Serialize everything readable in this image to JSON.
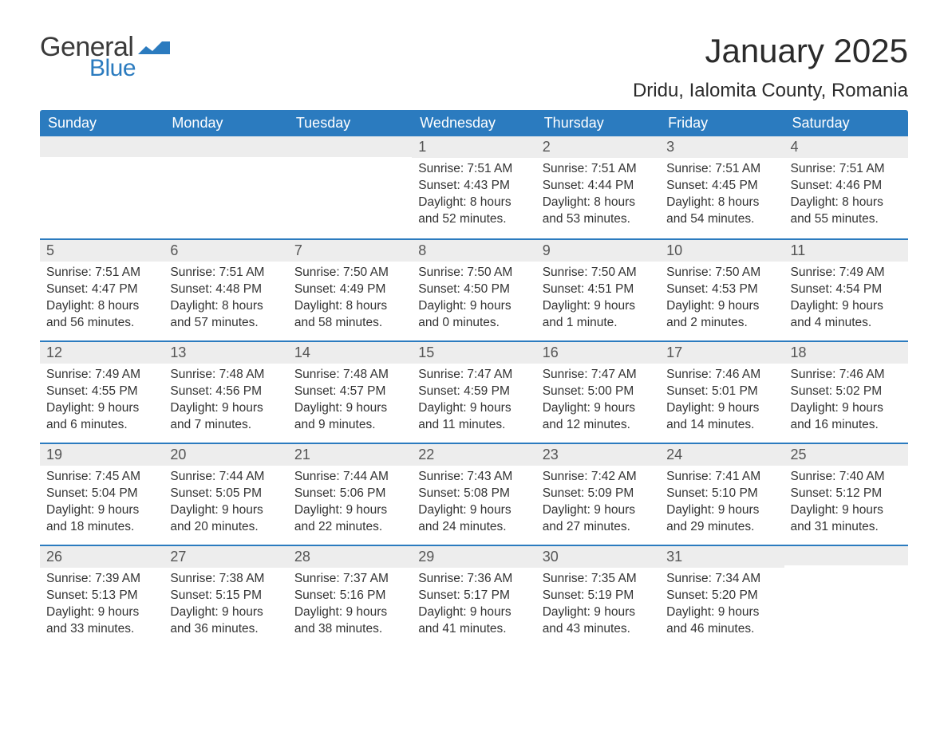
{
  "brand": {
    "word1": "General",
    "word2": "Blue",
    "wave_color": "#2b7bbf",
    "text_color": "#3a3a3a"
  },
  "header": {
    "month_title": "January 2025",
    "location": "Dridu, Ialomita County, Romania"
  },
  "colors": {
    "header_bg": "#2b7bbf",
    "header_fg": "#ffffff",
    "daynum_bg": "#ededed",
    "row_divider": "#2b7bbf",
    "body_text": "#333333",
    "page_bg": "#ffffff"
  },
  "calendar": {
    "day_headers": [
      "Sunday",
      "Monday",
      "Tuesday",
      "Wednesday",
      "Thursday",
      "Friday",
      "Saturday"
    ],
    "weeks": [
      [
        null,
        null,
        null,
        {
          "n": "1",
          "sr": "7:51 AM",
          "ss": "4:43 PM",
          "dl": "8 hours and 52 minutes."
        },
        {
          "n": "2",
          "sr": "7:51 AM",
          "ss": "4:44 PM",
          "dl": "8 hours and 53 minutes."
        },
        {
          "n": "3",
          "sr": "7:51 AM",
          "ss": "4:45 PM",
          "dl": "8 hours and 54 minutes."
        },
        {
          "n": "4",
          "sr": "7:51 AM",
          "ss": "4:46 PM",
          "dl": "8 hours and 55 minutes."
        }
      ],
      [
        {
          "n": "5",
          "sr": "7:51 AM",
          "ss": "4:47 PM",
          "dl": "8 hours and 56 minutes."
        },
        {
          "n": "6",
          "sr": "7:51 AM",
          "ss": "4:48 PM",
          "dl": "8 hours and 57 minutes."
        },
        {
          "n": "7",
          "sr": "7:50 AM",
          "ss": "4:49 PM",
          "dl": "8 hours and 58 minutes."
        },
        {
          "n": "8",
          "sr": "7:50 AM",
          "ss": "4:50 PM",
          "dl": "9 hours and 0 minutes."
        },
        {
          "n": "9",
          "sr": "7:50 AM",
          "ss": "4:51 PM",
          "dl": "9 hours and 1 minute."
        },
        {
          "n": "10",
          "sr": "7:50 AM",
          "ss": "4:53 PM",
          "dl": "9 hours and 2 minutes."
        },
        {
          "n": "11",
          "sr": "7:49 AM",
          "ss": "4:54 PM",
          "dl": "9 hours and 4 minutes."
        }
      ],
      [
        {
          "n": "12",
          "sr": "7:49 AM",
          "ss": "4:55 PM",
          "dl": "9 hours and 6 minutes."
        },
        {
          "n": "13",
          "sr": "7:48 AM",
          "ss": "4:56 PM",
          "dl": "9 hours and 7 minutes."
        },
        {
          "n": "14",
          "sr": "7:48 AM",
          "ss": "4:57 PM",
          "dl": "9 hours and 9 minutes."
        },
        {
          "n": "15",
          "sr": "7:47 AM",
          "ss": "4:59 PM",
          "dl": "9 hours and 11 minutes."
        },
        {
          "n": "16",
          "sr": "7:47 AM",
          "ss": "5:00 PM",
          "dl": "9 hours and 12 minutes."
        },
        {
          "n": "17",
          "sr": "7:46 AM",
          "ss": "5:01 PM",
          "dl": "9 hours and 14 minutes."
        },
        {
          "n": "18",
          "sr": "7:46 AM",
          "ss": "5:02 PM",
          "dl": "9 hours and 16 minutes."
        }
      ],
      [
        {
          "n": "19",
          "sr": "7:45 AM",
          "ss": "5:04 PM",
          "dl": "9 hours and 18 minutes."
        },
        {
          "n": "20",
          "sr": "7:44 AM",
          "ss": "5:05 PM",
          "dl": "9 hours and 20 minutes."
        },
        {
          "n": "21",
          "sr": "7:44 AM",
          "ss": "5:06 PM",
          "dl": "9 hours and 22 minutes."
        },
        {
          "n": "22",
          "sr": "7:43 AM",
          "ss": "5:08 PM",
          "dl": "9 hours and 24 minutes."
        },
        {
          "n": "23",
          "sr": "7:42 AM",
          "ss": "5:09 PM",
          "dl": "9 hours and 27 minutes."
        },
        {
          "n": "24",
          "sr": "7:41 AM",
          "ss": "5:10 PM",
          "dl": "9 hours and 29 minutes."
        },
        {
          "n": "25",
          "sr": "7:40 AM",
          "ss": "5:12 PM",
          "dl": "9 hours and 31 minutes."
        }
      ],
      [
        {
          "n": "26",
          "sr": "7:39 AM",
          "ss": "5:13 PM",
          "dl": "9 hours and 33 minutes."
        },
        {
          "n": "27",
          "sr": "7:38 AM",
          "ss": "5:15 PM",
          "dl": "9 hours and 36 minutes."
        },
        {
          "n": "28",
          "sr": "7:37 AM",
          "ss": "5:16 PM",
          "dl": "9 hours and 38 minutes."
        },
        {
          "n": "29",
          "sr": "7:36 AM",
          "ss": "5:17 PM",
          "dl": "9 hours and 41 minutes."
        },
        {
          "n": "30",
          "sr": "7:35 AM",
          "ss": "5:19 PM",
          "dl": "9 hours and 43 minutes."
        },
        {
          "n": "31",
          "sr": "7:34 AM",
          "ss": "5:20 PM",
          "dl": "9 hours and 46 minutes."
        },
        null
      ]
    ],
    "labels": {
      "sunrise": "Sunrise:",
      "sunset": "Sunset:",
      "daylight": "Daylight:"
    }
  }
}
